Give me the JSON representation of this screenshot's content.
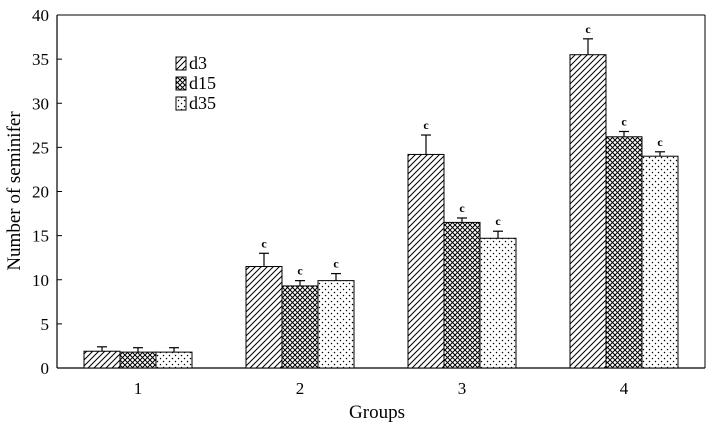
{
  "chart_data": {
    "type": "bar",
    "title": "",
    "xlabel": "Groups",
    "ylabel": "Number of seminifer",
    "categories": [
      "1",
      "2",
      "3",
      "4"
    ],
    "ylim": [
      0,
      40
    ],
    "yticks": [
      0,
      5,
      10,
      15,
      20,
      25,
      30,
      35,
      40
    ],
    "legend_position": "top-left",
    "grid": false,
    "series": [
      {
        "name": "d3",
        "pattern": "diagonal-hatch",
        "values": [
          1.9,
          11.5,
          24.2,
          35.5
        ],
        "errors": [
          0.5,
          1.5,
          2.2,
          1.8
        ],
        "labels": [
          "",
          "c",
          "c",
          "c"
        ]
      },
      {
        "name": "d15",
        "pattern": "cross-hatch",
        "values": [
          1.8,
          9.3,
          16.5,
          26.2
        ],
        "errors": [
          0.5,
          0.6,
          0.5,
          0.6
        ],
        "labels": [
          "",
          "c",
          "c",
          "c"
        ]
      },
      {
        "name": "d35",
        "pattern": "dots",
        "values": [
          1.8,
          9.9,
          14.7,
          24.0
        ],
        "errors": [
          0.5,
          0.8,
          0.8,
          0.5
        ],
        "labels": [
          "",
          "c",
          "c",
          "c"
        ]
      }
    ]
  }
}
